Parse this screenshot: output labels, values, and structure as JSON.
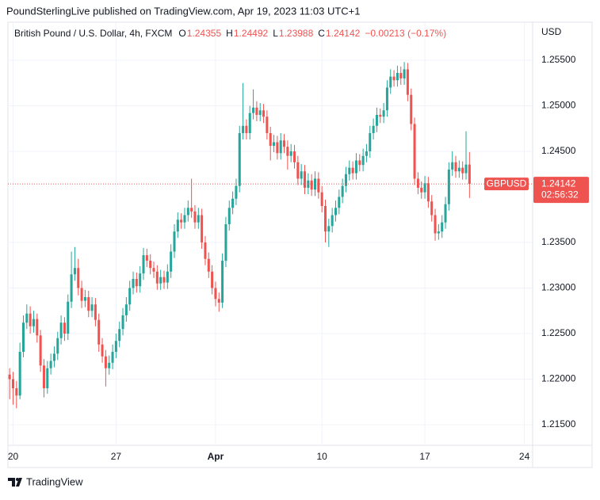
{
  "header": {
    "text": "PoundSterlingLive published on TradingView.com, Apr 19, 2023 11:03 UTC+1"
  },
  "chart_data": {
    "type": "candlestick",
    "title": "British Pound / U.S. Dollar, 4h, FXCM",
    "ohlc_letters": [
      "O",
      "H",
      "L",
      "C"
    ],
    "change": "−0.00213 (−0.17%)",
    "symbol": "GBPUSD",
    "countdown": "02:56:32",
    "currency": "USD",
    "up_color": "#26a69a",
    "down_color": "#ef5350",
    "grid": true,
    "xlim": [
      -0.5,
      152.4
    ],
    "xticks": [
      {
        "value": 1,
        "label": "20"
      },
      {
        "value": 31,
        "label": "27"
      },
      {
        "value": 60,
        "label": "Apr"
      },
      {
        "value": 91,
        "label": "10"
      },
      {
        "value": 121,
        "label": "17"
      },
      {
        "value": 150,
        "label": "24"
      }
    ],
    "ylim": [
      1.21274,
      1.25917
    ],
    "yticks": [
      {
        "value": 1.215,
        "label": "1.21500"
      },
      {
        "value": 1.22,
        "label": "1.22000"
      },
      {
        "value": 1.225,
        "label": "1.22500"
      },
      {
        "value": 1.23,
        "label": "1.23000"
      },
      {
        "value": 1.235,
        "label": "1.23500"
      },
      {
        "value": 1.245,
        "label": "1.24500"
      },
      {
        "value": 1.25,
        "label": "1.25000"
      },
      {
        "value": 1.255,
        "label": "1.25500"
      }
    ],
    "ohlc": [
      [
        1.2205,
        1.2212,
        1.2178,
        1.22
      ],
      [
        1.22,
        1.2208,
        1.2172,
        1.219
      ],
      [
        1.219,
        1.2198,
        1.2168,
        1.2182
      ],
      [
        1.2182,
        1.224,
        1.2178,
        1.223
      ],
      [
        1.223,
        1.227,
        1.2224,
        1.2262
      ],
      [
        1.2262,
        1.2282,
        1.2255,
        1.2272
      ],
      [
        1.2272,
        1.228,
        1.225,
        1.2258
      ],
      [
        1.2258,
        1.2275,
        1.2251,
        1.2266
      ],
      [
        1.2266,
        1.2272,
        1.224,
        1.2248
      ],
      [
        1.2248,
        1.2254,
        1.2208,
        1.2215
      ],
      [
        1.2215,
        1.2222,
        1.218,
        1.219
      ],
      [
        1.219,
        1.222,
        1.2184,
        1.2212
      ],
      [
        1.2212,
        1.2228,
        1.2205,
        1.222
      ],
      [
        1.222,
        1.2236,
        1.2213,
        1.2228
      ],
      [
        1.2228,
        1.2252,
        1.2221,
        1.2245
      ],
      [
        1.2245,
        1.227,
        1.2238,
        1.2262
      ],
      [
        1.2262,
        1.2268,
        1.2242,
        1.225
      ],
      [
        1.225,
        1.2293,
        1.2243,
        1.2285
      ],
      [
        1.2285,
        1.234,
        1.2278,
        1.2315
      ],
      [
        1.2315,
        1.2345,
        1.2308,
        1.2322
      ],
      [
        1.2322,
        1.2332,
        1.2292,
        1.23
      ],
      [
        1.23,
        1.2308,
        1.2278,
        1.2286
      ],
      [
        1.2286,
        1.2298,
        1.2279,
        1.229
      ],
      [
        1.229,
        1.2297,
        1.2268,
        1.2275
      ],
      [
        1.2275,
        1.229,
        1.2268,
        1.2282
      ],
      [
        1.2282,
        1.2289,
        1.2258,
        1.2265
      ],
      [
        1.2265,
        1.2272,
        1.223,
        1.2238
      ],
      [
        1.2238,
        1.2245,
        1.2218,
        1.2225
      ],
      [
        1.2225,
        1.2232,
        1.2192,
        1.2212
      ],
      [
        1.2212,
        1.2226,
        1.2205,
        1.2218
      ],
      [
        1.2218,
        1.2238,
        1.2211,
        1.223
      ],
      [
        1.223,
        1.225,
        1.2223,
        1.2242
      ],
      [
        1.2242,
        1.2263,
        1.2235,
        1.2255
      ],
      [
        1.2255,
        1.2278,
        1.2248,
        1.227
      ],
      [
        1.227,
        1.229,
        1.2263,
        1.2282
      ],
      [
        1.2282,
        1.2308,
        1.2275,
        1.23
      ],
      [
        1.23,
        1.2318,
        1.2293,
        1.231
      ],
      [
        1.231,
        1.2317,
        1.2295,
        1.2302
      ],
      [
        1.2302,
        1.2324,
        1.2295,
        1.2316
      ],
      [
        1.2316,
        1.2344,
        1.2309,
        1.2336
      ],
      [
        1.2336,
        1.2343,
        1.2323,
        1.233
      ],
      [
        1.233,
        1.2337,
        1.2315,
        1.2322
      ],
      [
        1.2322,
        1.2329,
        1.2311,
        1.2318
      ],
      [
        1.2318,
        1.2325,
        1.2298,
        1.2305
      ],
      [
        1.2305,
        1.232,
        1.2298,
        1.2312
      ],
      [
        1.2312,
        1.2319,
        1.2299,
        1.2306
      ],
      [
        1.2306,
        1.2326,
        1.2299,
        1.2318
      ],
      [
        1.2318,
        1.2348,
        1.2311,
        1.234
      ],
      [
        1.234,
        1.237,
        1.2333,
        1.2362
      ],
      [
        1.2362,
        1.2383,
        1.2355,
        1.2375
      ],
      [
        1.2375,
        1.2382,
        1.2365,
        1.2372
      ],
      [
        1.2372,
        1.2388,
        1.2365,
        1.238
      ],
      [
        1.238,
        1.2396,
        1.2373,
        1.2388
      ],
      [
        1.2388,
        1.242,
        1.2377,
        1.2384
      ],
      [
        1.2384,
        1.2391,
        1.2365,
        1.2372
      ],
      [
        1.2372,
        1.2388,
        1.2365,
        1.238
      ],
      [
        1.238,
        1.2387,
        1.2343,
        1.235
      ],
      [
        1.235,
        1.2357,
        1.2325,
        1.2332
      ],
      [
        1.2332,
        1.2339,
        1.2311,
        1.2318
      ],
      [
        1.2318,
        1.2325,
        1.2293,
        1.23
      ],
      [
        1.23,
        1.2307,
        1.228,
        1.2288
      ],
      [
        1.2288,
        1.2295,
        1.2274,
        1.2284
      ],
      [
        1.2284,
        1.2338,
        1.2278,
        1.233
      ],
      [
        1.233,
        1.2378,
        1.2323,
        1.237
      ],
      [
        1.237,
        1.2396,
        1.2363,
        1.2388
      ],
      [
        1.2388,
        1.2406,
        1.2381,
        1.2398
      ],
      [
        1.2398,
        1.242,
        1.2391,
        1.2412
      ],
      [
        1.2412,
        1.2478,
        1.2405,
        1.247
      ],
      [
        1.247,
        1.2525,
        1.2463,
        1.2478
      ],
      [
        1.2478,
        1.2485,
        1.2463,
        1.247
      ],
      [
        1.247,
        1.25,
        1.2463,
        1.2492
      ],
      [
        1.2492,
        1.2518,
        1.2485,
        1.2498
      ],
      [
        1.2498,
        1.2505,
        1.2483,
        1.249
      ],
      [
        1.249,
        1.2503,
        1.2483,
        1.2495
      ],
      [
        1.2495,
        1.2502,
        1.2481,
        1.2488
      ],
      [
        1.2488,
        1.2495,
        1.2463,
        1.247
      ],
      [
        1.247,
        1.2477,
        1.244,
        1.2456
      ],
      [
        1.2456,
        1.2468,
        1.2449,
        1.246
      ],
      [
        1.246,
        1.2467,
        1.2441,
        1.2448
      ],
      [
        1.2448,
        1.247,
        1.2441,
        1.2462
      ],
      [
        1.2462,
        1.2469,
        1.2448,
        1.2455
      ],
      [
        1.2455,
        1.2462,
        1.243,
        1.2445
      ],
      [
        1.2445,
        1.2458,
        1.2438,
        1.245
      ],
      [
        1.245,
        1.2457,
        1.2431,
        1.2438
      ],
      [
        1.2438,
        1.2445,
        1.2413,
        1.242
      ],
      [
        1.242,
        1.2436,
        1.2413,
        1.2428
      ],
      [
        1.2428,
        1.2435,
        1.2403,
        1.241
      ],
      [
        1.241,
        1.2426,
        1.2403,
        1.2418
      ],
      [
        1.2418,
        1.2425,
        1.2401,
        1.2408
      ],
      [
        1.2408,
        1.2428,
        1.2401,
        1.242
      ],
      [
        1.242,
        1.2427,
        1.2398,
        1.2405
      ],
      [
        1.2405,
        1.2412,
        1.2383,
        1.239
      ],
      [
        1.239,
        1.2397,
        1.235,
        1.2362
      ],
      [
        1.2362,
        1.2376,
        1.2345,
        1.2368
      ],
      [
        1.2368,
        1.2388,
        1.2361,
        1.238
      ],
      [
        1.238,
        1.2396,
        1.2373,
        1.2388
      ],
      [
        1.2388,
        1.2408,
        1.2381,
        1.24
      ],
      [
        1.24,
        1.242,
        1.2393,
        1.2412
      ],
      [
        1.2412,
        1.2433,
        1.2405,
        1.2425
      ],
      [
        1.2425,
        1.244,
        1.2418,
        1.2432
      ],
      [
        1.2432,
        1.2439,
        1.2419,
        1.2426
      ],
      [
        1.2426,
        1.2448,
        1.2419,
        1.244
      ],
      [
        1.244,
        1.2447,
        1.2428,
        1.2435
      ],
      [
        1.2435,
        1.2453,
        1.2428,
        1.2445
      ],
      [
        1.2445,
        1.2458,
        1.2438,
        1.245
      ],
      [
        1.245,
        1.2478,
        1.2443,
        1.247
      ],
      [
        1.247,
        1.2486,
        1.2463,
        1.2478
      ],
      [
        1.2478,
        1.2498,
        1.2471,
        1.249
      ],
      [
        1.249,
        1.2497,
        1.2481,
        1.2488
      ],
      [
        1.2488,
        1.2503,
        1.2481,
        1.2495
      ],
      [
        1.2495,
        1.2528,
        1.2488,
        1.252
      ],
      [
        1.252,
        1.254,
        1.2513,
        1.2532
      ],
      [
        1.2532,
        1.2539,
        1.2521,
        1.2528
      ],
      [
        1.2528,
        1.2544,
        1.2521,
        1.2536
      ],
      [
        1.2536,
        1.2543,
        1.2523,
        1.253
      ],
      [
        1.253,
        1.2548,
        1.2523,
        1.254
      ],
      [
        1.254,
        1.2547,
        1.2505,
        1.2512
      ],
      [
        1.2512,
        1.2519,
        1.2473,
        1.248
      ],
      [
        1.248,
        1.2487,
        1.2413,
        1.242
      ],
      [
        1.242,
        1.2427,
        1.2403,
        1.241
      ],
      [
        1.241,
        1.2417,
        1.2398,
        1.2405
      ],
      [
        1.2405,
        1.2423,
        1.2398,
        1.2415
      ],
      [
        1.2415,
        1.2422,
        1.2388,
        1.2395
      ],
      [
        1.2395,
        1.2402,
        1.2373,
        1.238
      ],
      [
        1.238,
        1.2387,
        1.2352,
        1.236
      ],
      [
        1.236,
        1.237,
        1.2353,
        1.2362
      ],
      [
        1.2362,
        1.238,
        1.2355,
        1.2372
      ],
      [
        1.2372,
        1.24,
        1.2365,
        1.2392
      ],
      [
        1.2392,
        1.2438,
        1.2385,
        1.243
      ],
      [
        1.243,
        1.245,
        1.2423,
        1.2438
      ],
      [
        1.2438,
        1.2445,
        1.2421,
        1.2428
      ],
      [
        1.2428,
        1.244,
        1.2421,
        1.2432
      ],
      [
        1.2432,
        1.2439,
        1.2419,
        1.2426
      ],
      [
        1.2426,
        1.2472,
        1.2419,
        1.24355
      ],
      [
        1.24355,
        1.24492,
        1.23988,
        1.24142
      ]
    ]
  },
  "footer": {
    "brand": "TradingView"
  }
}
